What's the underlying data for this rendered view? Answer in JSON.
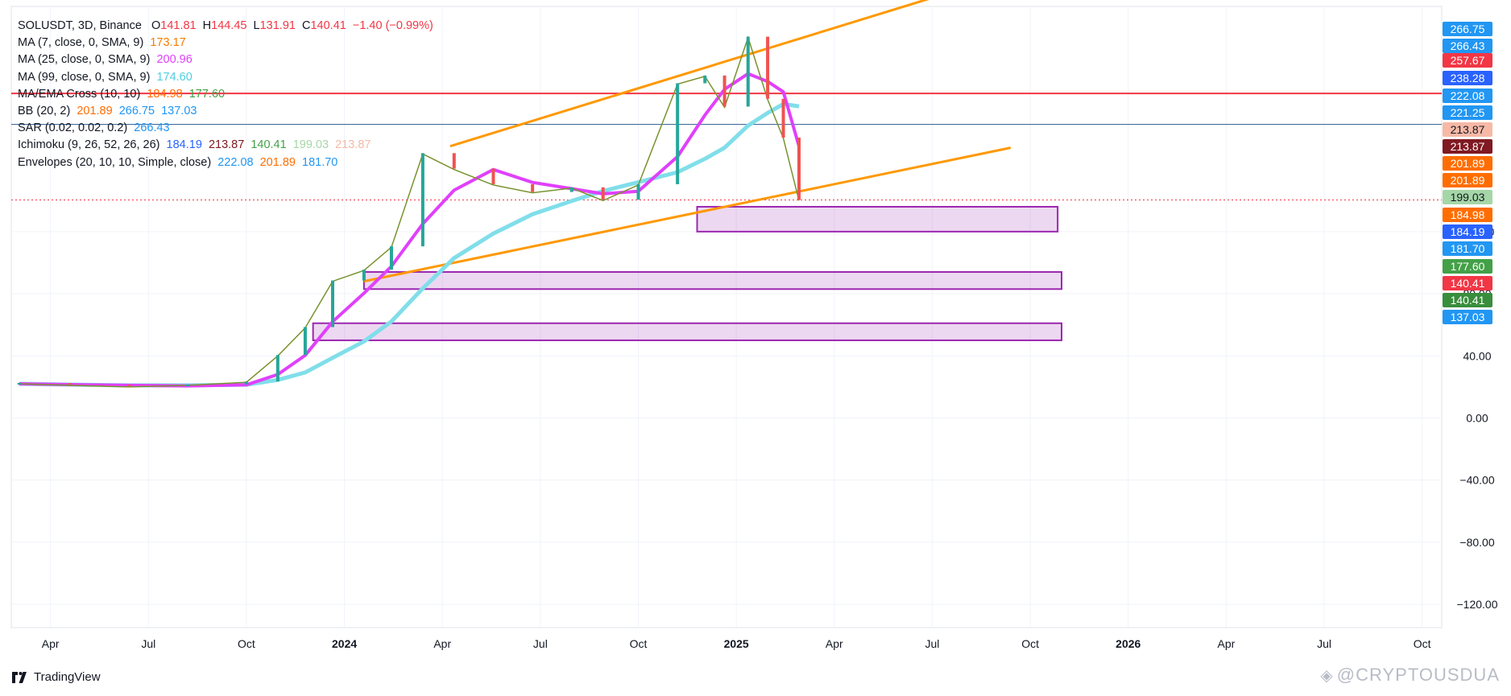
{
  "legend": {
    "main": {
      "symbol": "SOLUSDT, 3D, Binance",
      "o_label": "O",
      "o": "141.81",
      "h_label": "H",
      "h": "144.45",
      "l_label": "L",
      "l": "131.91",
      "c_label": "C",
      "c": "140.41",
      "chg": "−1.40 (−0.99%)"
    },
    "ma7": {
      "label": "MA (7, close, 0, SMA, 9)",
      "value": "173.17"
    },
    "ma25": {
      "label": "MA (25, close, 0, SMA, 9)",
      "value": "200.96"
    },
    "ma99": {
      "label": "MA (99, close, 0, SMA, 9)",
      "value": "174.60"
    },
    "cross": {
      "label": "MA/EMA Cross (10, 10)",
      "v1": "184.98",
      "v2": "177.60"
    },
    "bb": {
      "label": "BB (20, 2)",
      "v1": "201.89",
      "v2": "266.75",
      "v3": "137.03"
    },
    "sar": {
      "label": "SAR (0.02, 0.02, 0.2)",
      "value": "266.43"
    },
    "ichimoku": {
      "label": "Ichimoku (9, 26, 52, 26, 26)",
      "v1": "184.19",
      "v2": "213.87",
      "v3": "140.41",
      "v4": "199.03",
      "v5": "213.87"
    },
    "env": {
      "label": "Envelopes (20, 10, 10, Simple, close)",
      "v1": "222.08",
      "v2": "201.89",
      "v3": "181.70"
    }
  },
  "price_tags": [
    {
      "text": "266.75",
      "bg": "#2196f3"
    },
    {
      "text": "266.43",
      "bg": "#2196f3"
    },
    {
      "text": "257.67",
      "bg": "#f23645"
    },
    {
      "text": "238.28",
      "bg": "#2962ff"
    },
    {
      "text": "222.08",
      "bg": "#2196f3"
    },
    {
      "text": "221.25",
      "bg": "#2196f3"
    },
    {
      "text": "213.87",
      "bg": "#f7b9a6",
      "fg": "#131722"
    },
    {
      "text": "213.87",
      "bg": "#801922"
    },
    {
      "text": "201.89",
      "bg": "#ff6d00"
    },
    {
      "text": "201.89",
      "bg": "#ff6d00"
    },
    {
      "text": "199.03",
      "bg": "#a5d6a7",
      "fg": "#131722"
    },
    {
      "text": "184.98",
      "bg": "#ff6d00"
    },
    {
      "text": "184.19",
      "bg": "#2962ff"
    },
    {
      "text": "181.70",
      "bg": "#2196f3"
    },
    {
      "text": "177.60",
      "bg": "#43a047"
    },
    {
      "text": "140.41",
      "bg": "#f23645"
    },
    {
      "text": "140.41",
      "bg": "#388e3c"
    },
    {
      "text": "137.03",
      "bg": "#2196f3"
    }
  ],
  "brand": {
    "name": "TradingView"
  },
  "watermark": {
    "text": "@CRYPTOUSDUA"
  },
  "colors": {
    "up": "#26a69a",
    "down": "#ef5350",
    "ma7": "#f57c00",
    "ma25": "#e040fb",
    "ma99": "#80deea",
    "channel": "#ff9800",
    "resistance": "#f23645",
    "zone": "#9c27b0",
    "bb": "#2196f3",
    "ichimoku_green": "#43a047"
  },
  "chart_data": {
    "type": "line",
    "title": "SOLUSDT, 3D, Binance",
    "y_ticks": [
      -120,
      -80,
      -40,
      0,
      40,
      80,
      120
    ],
    "ylim": [
      -135,
      265
    ],
    "x_ticks": [
      "Apr",
      "Jul",
      "Oct",
      "2024",
      "Apr",
      "Jul",
      "Oct",
      "2025",
      "Apr",
      "Jul",
      "Oct",
      "2026",
      "Apr",
      "Jul",
      "Oct"
    ],
    "x_tick_bold": [
      "2024",
      "2025",
      "2026"
    ],
    "price_series": {
      "name": "SOLUSDT close",
      "x": [
        2023.17,
        2023.3,
        2023.45,
        2023.6,
        2023.75,
        2023.83,
        2023.9,
        2023.97,
        2024.05,
        2024.12,
        2024.2,
        2024.28,
        2024.38,
        2024.48,
        2024.58,
        2024.66,
        2024.75,
        2024.85,
        2024.92,
        2024.97,
        2025.03,
        2025.08,
        2025.12,
        2025.16
      ],
      "values": [
        22,
        21,
        20,
        21,
        23,
        40,
        58,
        88,
        95,
        110,
        170,
        160,
        150,
        145,
        148,
        140,
        150,
        215,
        220,
        200,
        245,
        205,
        180,
        140
      ]
    },
    "horizontal_lines": [
      {
        "name": "resistance",
        "value": 209
      },
      {
        "name": "reference",
        "value": 189
      },
      {
        "name": "last close",
        "value": 140.41
      }
    ],
    "channel": {
      "upper": {
        "from": [
          2024.27,
          175
        ],
        "to": [
          2025.66,
          283
        ]
      },
      "lower": {
        "from": [
          2024.05,
          88
        ],
        "to": [
          2025.7,
          174
        ]
      }
    },
    "zones": [
      {
        "name": "zone-1",
        "from": 120,
        "to": 136,
        "x_start": 2024.9,
        "x_end": 2025.82
      },
      {
        "name": "zone-2",
        "from": 83,
        "to": 94,
        "x_start": 2024.05,
        "x_end": 2025.83
      },
      {
        "name": "zone-3",
        "from": 50,
        "to": 61,
        "x_start": 2023.92,
        "x_end": 2025.83
      }
    ]
  }
}
